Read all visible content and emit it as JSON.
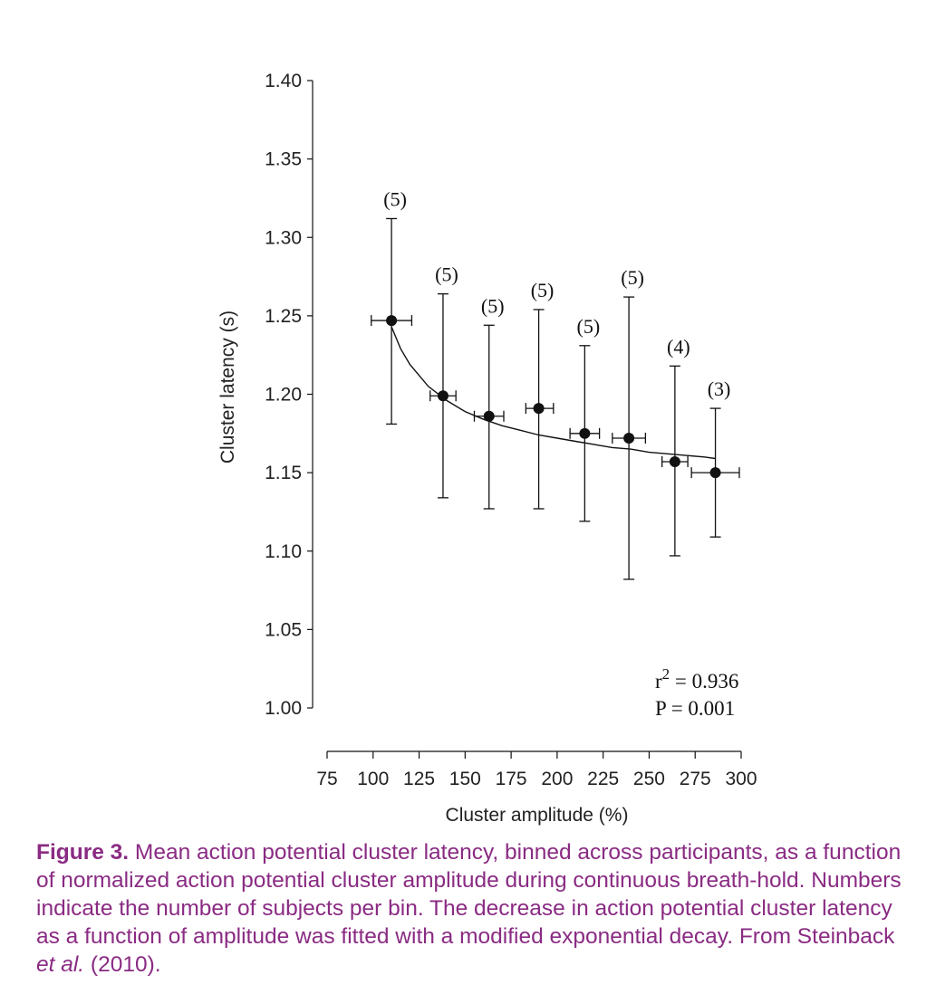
{
  "chart_data": {
    "type": "scatter",
    "xlabel": "Cluster amplitude (%)",
    "ylabel": "Cluster latency (s)",
    "xlim": [
      75,
      300
    ],
    "ylim": [
      1.0,
      1.4
    ],
    "x_ticks": [
      "75",
      "100",
      "125",
      "150",
      "175",
      "200",
      "225",
      "250",
      "275",
      "300"
    ],
    "y_ticks": [
      "1.00",
      "1.05",
      "1.10",
      "1.15",
      "1.20",
      "1.25",
      "1.30",
      "1.35",
      "1.40"
    ],
    "points": [
      {
        "x": 110,
        "y": 1.247,
        "y_low": 1.181,
        "y_high": 1.312,
        "x_low": 99,
        "x_high": 121,
        "n_label": "(5)"
      },
      {
        "x": 138,
        "y": 1.199,
        "y_low": 1.134,
        "y_high": 1.264,
        "x_low": 131,
        "x_high": 145,
        "n_label": "(5)"
      },
      {
        "x": 163,
        "y": 1.186,
        "y_low": 1.127,
        "y_high": 1.244,
        "x_low": 155,
        "x_high": 171,
        "n_label": "(5)"
      },
      {
        "x": 190,
        "y": 1.191,
        "y_low": 1.127,
        "y_high": 1.254,
        "x_low": 183,
        "x_high": 198,
        "n_label": "(5)"
      },
      {
        "x": 215,
        "y": 1.175,
        "y_low": 1.119,
        "y_high": 1.231,
        "x_low": 207,
        "x_high": 223,
        "n_label": "(5)"
      },
      {
        "x": 239,
        "y": 1.172,
        "y_low": 1.082,
        "y_high": 1.262,
        "x_low": 230,
        "x_high": 248,
        "n_label": "(5)"
      },
      {
        "x": 264,
        "y": 1.157,
        "y_low": 1.097,
        "y_high": 1.218,
        "x_low": 257,
        "x_high": 271,
        "n_label": "(4)"
      },
      {
        "x": 286,
        "y": 1.15,
        "y_low": 1.109,
        "y_high": 1.191,
        "x_low": 273,
        "x_high": 299,
        "n_label": "(3)"
      }
    ],
    "fit_curve": {
      "x": [
        110,
        115,
        120,
        130,
        140,
        150,
        160,
        170,
        180,
        190,
        200,
        210,
        220,
        230,
        240,
        250,
        260,
        270,
        280,
        286
      ],
      "y": [
        1.243,
        1.229,
        1.219,
        1.205,
        1.196,
        1.189,
        1.184,
        1.18,
        1.177,
        1.174,
        1.172,
        1.17,
        1.168,
        1.166,
        1.165,
        1.163,
        1.162,
        1.161,
        1.16,
        1.159
      ]
    },
    "stats": {
      "r2_prefix": "r",
      "r2_superscript": "2",
      "r2_value": " = 0.936",
      "p_text": "P = 0.001"
    }
  },
  "caption": {
    "label": "Figure 3.",
    "text_main": " Mean action potential cluster latency, binned across participants, as a function of normalized action potential cluster amplitude during continuous breath-hold. Numbers indicate the number of subjects per bin. The decrease in action potential cluster latency as a function of amplitude was fitted with a modified exponential decay. From Steinback ",
    "text_italic": "et al.",
    "text_end": " (2010)."
  },
  "colors": {
    "caption": "#8a2b83",
    "marks": "#111111"
  }
}
